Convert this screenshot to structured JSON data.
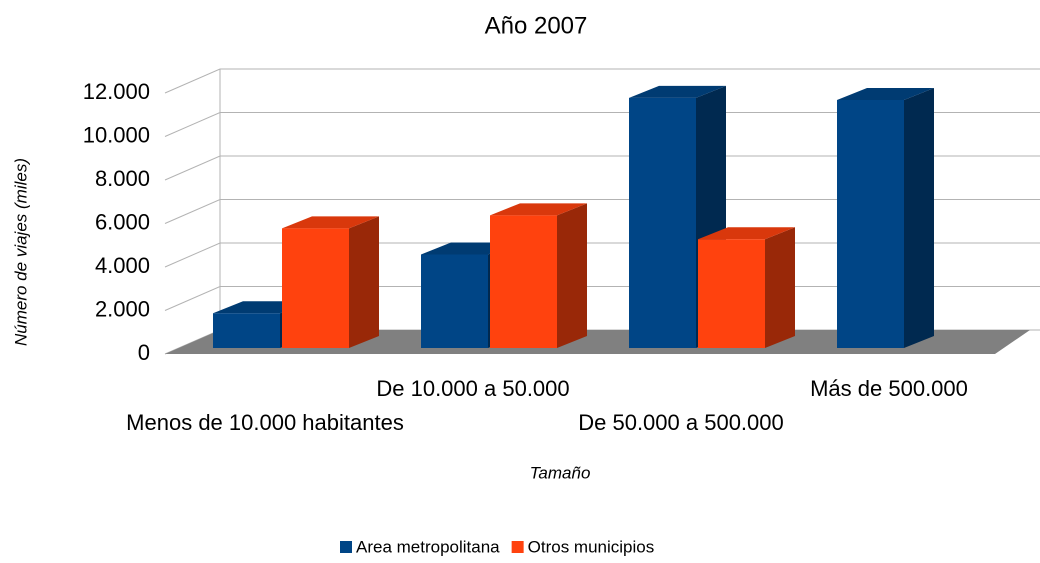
{
  "chart_data": {
    "type": "bar3d",
    "title": "Año 2007",
    "y_label": "Número de viajes (miles)",
    "x_label": "Tamaño",
    "categories": [
      "Menos de 10.000 habitantes",
      "De 10.000 a 50.000",
      "De 50.000 a 500.000",
      "Más de 500.000"
    ],
    "series": [
      {
        "name": "Area metropolitana",
        "color": "#004586",
        "values": [
          1600,
          4300,
          11500,
          11400
        ]
      },
      {
        "name": "Otros municipios",
        "color": "#ff420e",
        "values": [
          5500,
          6100,
          5000,
          null
        ]
      }
    ],
    "ylim": [
      0,
      12000
    ],
    "yticks": [
      0,
      {
        "value": 2000,
        "label": "2.000"
      },
      {
        "value": 4000,
        "label": "4.000"
      },
      {
        "value": 6000,
        "label": "6.000"
      },
      {
        "value": 8000,
        "label": "8.000"
      },
      {
        "value": 10000,
        "label": "10.000"
      },
      {
        "value": 12000,
        "label": "12.000"
      }
    ],
    "grid": true
  }
}
